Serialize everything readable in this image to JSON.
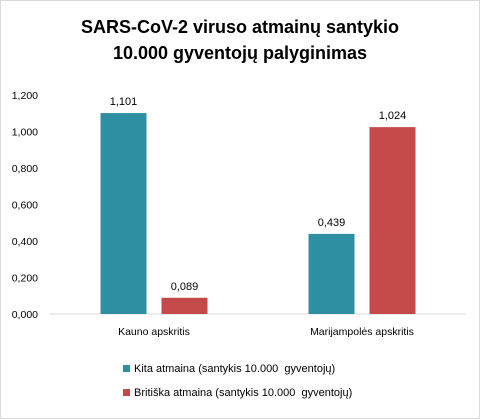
{
  "chart_data": {
    "type": "bar",
    "title_lines": [
      "SARS-CoV-2 viruso atmainų santykio",
      "10.000 gyventojų palyginimas"
    ],
    "categories": [
      "Kauno apskritis",
      "Marijampolės apskritis"
    ],
    "series": [
      {
        "name": "Kita atmaina (santykis 10.000  gyventojų)",
        "color": "#2e8fa3",
        "values": [
          1.101,
          0.439
        ],
        "labels": [
          "1,101",
          "0,439"
        ]
      },
      {
        "name": "Britiška atmaina (santykis 10.000  gyventojų)",
        "color": "#c44a4a",
        "values": [
          0.089,
          1.024
        ],
        "labels": [
          "0,089",
          "1,024"
        ]
      }
    ],
    "yticks": [
      0,
      0.2,
      0.4,
      0.6,
      0.8,
      1.0,
      1.2
    ],
    "ytick_labels": [
      "0,000",
      "0,200",
      "0,400",
      "0,600",
      "0,800",
      "1,000",
      "1,200"
    ],
    "ylim": [
      0,
      1.2
    ],
    "grid": false,
    "legend_position": "bottom"
  }
}
